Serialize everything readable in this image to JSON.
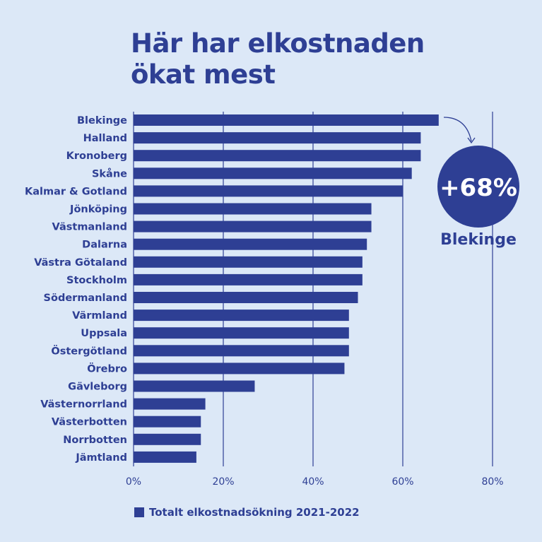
{
  "title_lines": [
    "Här har elkostnaden",
    "ökat mest"
  ],
  "callout": {
    "value": "+68%",
    "label": "Blekinge"
  },
  "colors": {
    "bar": "#2e3f94",
    "background": "#dce8f7"
  },
  "chart_data": {
    "type": "bar",
    "orientation": "horizontal",
    "title": "Här har elkostnaden ökat mest",
    "categories": [
      "Blekinge",
      "Halland",
      "Kronoberg",
      "Skåne",
      "Kalmar & Gotland",
      "Jönköping",
      "Västmanland",
      "Dalarna",
      "Västra Götaland",
      "Stockholm",
      "Södermanland",
      "Värmland",
      "Uppsala",
      "Östergötland",
      "Örebro",
      "Gävleborg",
      "Västernorrland",
      "Västerbotten",
      "Norrbotten",
      "Jämtland"
    ],
    "series": [
      {
        "name": "Totalt elkostnadsökning 2021-2022",
        "values": [
          68,
          64,
          64,
          62,
          60,
          53,
          53,
          52,
          51,
          51,
          50,
          48,
          48,
          48,
          47,
          27,
          16,
          15,
          15,
          14
        ]
      }
    ],
    "xlim": [
      0,
      80
    ],
    "ticks": [
      "0%",
      "20%",
      "40%",
      "60%",
      "80%"
    ],
    "tick_values": [
      0,
      20,
      40,
      60,
      80
    ],
    "grid": true,
    "legend_position": "bottom-left"
  }
}
